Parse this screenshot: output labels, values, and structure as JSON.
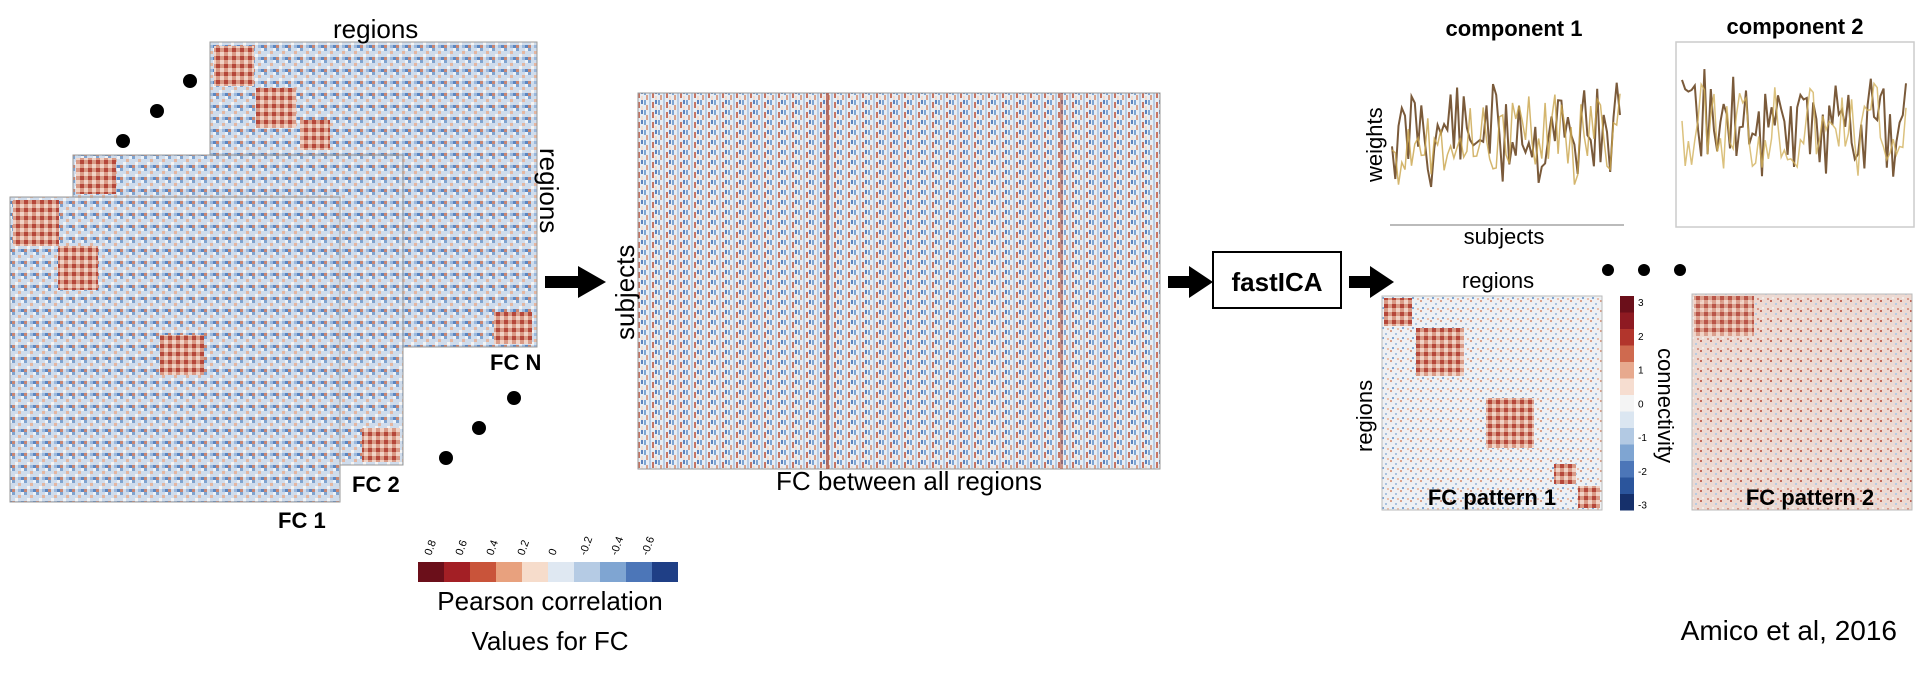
{
  "matrices": {
    "top_label": "regions",
    "side_label": "regions",
    "fc_n_label": "FC N",
    "fc_2_label": "FC 2",
    "fc_1_label": "FC 1"
  },
  "pearson_colorbar": {
    "ticks": [
      "0.8",
      "0.6",
      "0.4",
      "0.2",
      "0",
      "-0.2",
      "-0.4",
      "-0.6"
    ],
    "colors": [
      "#6b0f1a",
      "#a31f25",
      "#c9543a",
      "#e8a17e",
      "#f6dccb",
      "#dfe8f2",
      "#b5cbe4",
      "#7fa5d2",
      "#4c76b8",
      "#1f3f86"
    ],
    "title_line1": "Pearson correlation",
    "title_line2": "Values for FC"
  },
  "big_matrix": {
    "y_label": "subjects",
    "x_label": "FC between all regions"
  },
  "fastica_box": {
    "label": "fastICA"
  },
  "components": [
    {
      "title": "component 1",
      "ylabel": "weights",
      "xlabel": "subjects"
    },
    {
      "title": "component 2"
    }
  ],
  "fc_patterns": {
    "top_label": "regions",
    "side_label": "regions",
    "pattern1_label": "FC pattern 1",
    "pattern2_label": "FC pattern 2"
  },
  "connectivity_colorbar": {
    "ticks": [
      "3",
      "2",
      "1",
      "0",
      "-1",
      "-2",
      "-3"
    ],
    "label": "connectivity"
  },
  "citation": "Amico et al, 2016",
  "colors": {
    "red": "#b2182b",
    "blue": "#2166ac",
    "white": "#f7f7f7",
    "arrow": "#000000"
  }
}
